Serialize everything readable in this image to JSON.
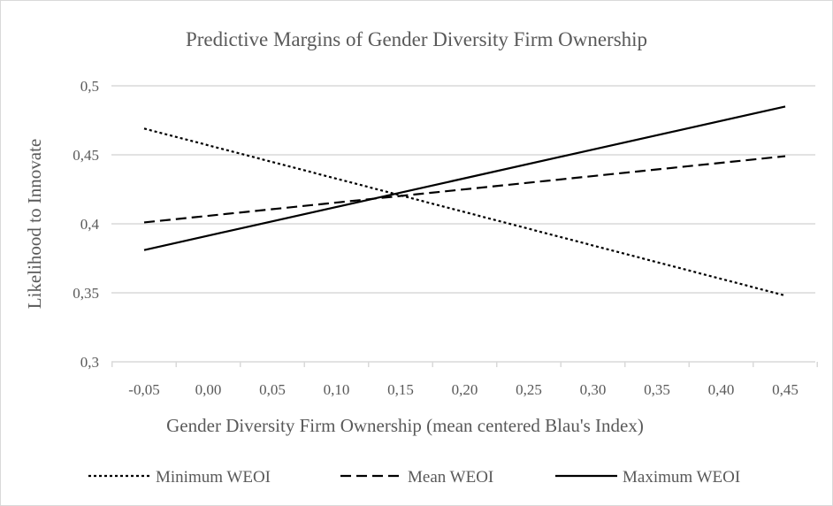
{
  "chart_data": {
    "type": "line",
    "title": "Predictive Margins of Gender Diversity Firm Ownership",
    "xlabel": "Gender Diversity Firm Ownership (mean centered Blau's Index)",
    "ylabel": "Likelihood to Innovate",
    "x_tick_labels": [
      "-0,05",
      "0,00",
      "0,05",
      "0,10",
      "0,15",
      "0,20",
      "0,25",
      "0,30",
      "0,35",
      "0,40",
      "0,45"
    ],
    "y_tick_labels": [
      "0,3",
      "0,35",
      "0,4",
      "0,45",
      "0,5"
    ],
    "x_ticks": [
      -0.05,
      0.0,
      0.05,
      0.1,
      0.15,
      0.2,
      0.25,
      0.3,
      0.35,
      0.4,
      0.45
    ],
    "y_ticks": [
      0.3,
      0.35,
      0.4,
      0.45,
      0.5
    ],
    "xlim": [
      -0.05,
      0.45
    ],
    "ylim": [
      0.3,
      0.5
    ],
    "grid": "horizontal",
    "legend_position": "bottom",
    "series": [
      {
        "name": "Minimum WEOI",
        "style": "dotted",
        "x": [
          -0.05,
          0.45
        ],
        "y": [
          0.469,
          0.348
        ]
      },
      {
        "name": "Mean WEOI",
        "style": "dashed",
        "x": [
          -0.05,
          0.45
        ],
        "y": [
          0.401,
          0.449
        ]
      },
      {
        "name": "Maximum WEOI",
        "style": "solid",
        "x": [
          -0.05,
          0.45
        ],
        "y": [
          0.381,
          0.485
        ]
      }
    ],
    "colors": {
      "lines": "#000000",
      "text": "#595959",
      "grid": "#d9d9d9",
      "frame": "#d9d9d9"
    }
  }
}
